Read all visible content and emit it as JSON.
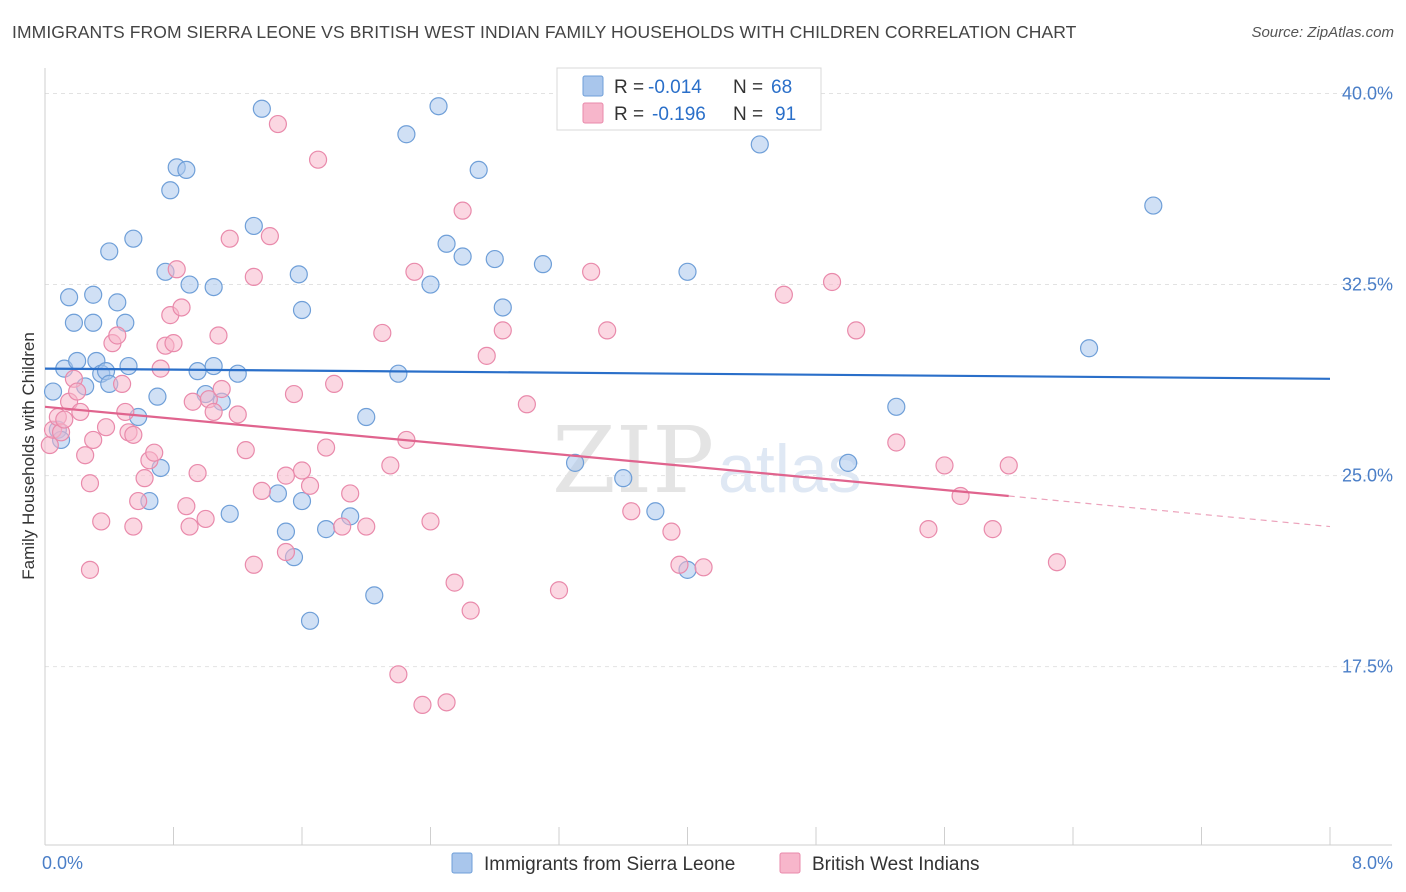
{
  "header": {
    "title": "IMMIGRANTS FROM SIERRA LEONE VS BRITISH WEST INDIAN FAMILY HOUSEHOLDS WITH CHILDREN CORRELATION CHART",
    "source": "Source: ZipAtlas.com"
  },
  "watermark": {
    "zip": "ZIP",
    "atlas": "atlas"
  },
  "legend": {
    "r_label": "R =",
    "n_label": "N =",
    "rows": [
      {
        "r": "-0.014",
        "n": "68",
        "color": "#a9c6ec"
      },
      {
        "r": "-0.196",
        "n": "91",
        "color": "#f7b6cb"
      }
    ]
  },
  "chart_data": {
    "type": "scatter",
    "title": "IMMIGRANTS FROM SIERRA LEONE VS BRITISH WEST INDIAN FAMILY HOUSEHOLDS WITH CHILDREN CORRELATION CHART",
    "xlabel": "",
    "ylabel": "Family Households with Children",
    "xlim": [
      0,
      8
    ],
    "ylim": [
      10.5,
      41
    ],
    "x_tick_labels": [
      {
        "value": 0,
        "label": "0.0%"
      },
      {
        "value": 8,
        "label": "8.0%"
      }
    ],
    "y_ticks": [
      {
        "value": 17.5,
        "label": "17.5%"
      },
      {
        "value": 25,
        "label": "25.0%"
      },
      {
        "value": 32.5,
        "label": "32.5%"
      },
      {
        "value": 40,
        "label": "40.0%"
      }
    ],
    "grid": "horizontal dashed",
    "legend_position": "top-center",
    "series": [
      {
        "name": "Immigrants from Sierra Leone",
        "color": "#a9c6ec",
        "stroke": "#6f9fd8",
        "trend": {
          "x": [
            0,
            8
          ],
          "y": [
            29.2,
            28.8
          ],
          "color": "#2a6fc9"
        },
        "points": [
          [
            0.05,
            28.3
          ],
          [
            0.08,
            26.8
          ],
          [
            0.1,
            26.4
          ],
          [
            0.12,
            29.2
          ],
          [
            0.15,
            32.0
          ],
          [
            0.18,
            31.0
          ],
          [
            0.2,
            29.5
          ],
          [
            0.25,
            28.5
          ],
          [
            0.3,
            32.1
          ],
          [
            0.3,
            31.0
          ],
          [
            0.32,
            29.5
          ],
          [
            0.35,
            29.0
          ],
          [
            0.38,
            29.1
          ],
          [
            0.4,
            28.6
          ],
          [
            0.4,
            33.8
          ],
          [
            0.45,
            31.8
          ],
          [
            0.5,
            31.0
          ],
          [
            0.52,
            29.3
          ],
          [
            0.55,
            34.3
          ],
          [
            0.58,
            27.3
          ],
          [
            0.7,
            28.1
          ],
          [
            0.72,
            25.3
          ],
          [
            0.75,
            33.0
          ],
          [
            0.78,
            36.2
          ],
          [
            0.82,
            37.1
          ],
          [
            0.88,
            37.0
          ],
          [
            0.9,
            32.5
          ],
          [
            0.95,
            29.1
          ],
          [
            1.0,
            28.2
          ],
          [
            1.05,
            32.4
          ],
          [
            1.05,
            29.3
          ],
          [
            1.1,
            27.9
          ],
          [
            1.2,
            29.0
          ],
          [
            1.3,
            34.8
          ],
          [
            1.35,
            39.4
          ],
          [
            1.45,
            24.3
          ],
          [
            1.5,
            22.8
          ],
          [
            1.55,
            21.8
          ],
          [
            1.58,
            32.9
          ],
          [
            1.6,
            31.5
          ],
          [
            1.65,
            19.3
          ],
          [
            1.75,
            22.9
          ],
          [
            1.9,
            23.4
          ],
          [
            2.0,
            27.3
          ],
          [
            2.05,
            20.3
          ],
          [
            2.2,
            29.0
          ],
          [
            2.25,
            38.4
          ],
          [
            2.4,
            32.5
          ],
          [
            2.45,
            39.5
          ],
          [
            2.5,
            34.1
          ],
          [
            2.6,
            33.6
          ],
          [
            2.7,
            37.0
          ],
          [
            2.8,
            33.5
          ],
          [
            2.85,
            31.6
          ],
          [
            3.1,
            33.3
          ],
          [
            3.3,
            25.5
          ],
          [
            3.6,
            24.9
          ],
          [
            3.8,
            23.6
          ],
          [
            4.0,
            21.3
          ],
          [
            4.0,
            33.0
          ],
          [
            4.45,
            38.0
          ],
          [
            5.0,
            25.5
          ],
          [
            5.3,
            27.7
          ],
          [
            6.5,
            30.0
          ],
          [
            6.9,
            35.6
          ],
          [
            0.65,
            24.0
          ],
          [
            1.15,
            23.5
          ],
          [
            1.6,
            24.0
          ]
        ]
      },
      {
        "name": "British West Indians",
        "color": "#f7b6cb",
        "stroke": "#e98aab",
        "trend": {
          "x": [
            0,
            6
          ],
          "y": [
            27.7,
            24.2
          ],
          "color": "#e0648e"
        },
        "trend_dashed": {
          "x": [
            6,
            8
          ],
          "y": [
            24.2,
            23.0
          ]
        },
        "points": [
          [
            0.03,
            26.2
          ],
          [
            0.05,
            26.8
          ],
          [
            0.08,
            27.3
          ],
          [
            0.1,
            26.7
          ],
          [
            0.12,
            27.2
          ],
          [
            0.15,
            27.9
          ],
          [
            0.18,
            28.8
          ],
          [
            0.2,
            28.3
          ],
          [
            0.22,
            27.5
          ],
          [
            0.25,
            25.8
          ],
          [
            0.28,
            24.7
          ],
          [
            0.3,
            26.4
          ],
          [
            0.35,
            23.2
          ],
          [
            0.38,
            26.9
          ],
          [
            0.42,
            30.2
          ],
          [
            0.45,
            30.5
          ],
          [
            0.48,
            28.6
          ],
          [
            0.5,
            27.5
          ],
          [
            0.52,
            26.7
          ],
          [
            0.55,
            26.6
          ],
          [
            0.58,
            24.0
          ],
          [
            0.62,
            24.9
          ],
          [
            0.65,
            25.6
          ],
          [
            0.68,
            25.9
          ],
          [
            0.72,
            29.2
          ],
          [
            0.75,
            30.1
          ],
          [
            0.78,
            31.3
          ],
          [
            0.8,
            30.2
          ],
          [
            0.82,
            33.1
          ],
          [
            0.85,
            31.6
          ],
          [
            0.88,
            23.8
          ],
          [
            0.9,
            23.0
          ],
          [
            0.92,
            27.9
          ],
          [
            0.95,
            25.1
          ],
          [
            1.0,
            23.3
          ],
          [
            1.02,
            28.0
          ],
          [
            1.05,
            27.5
          ],
          [
            1.08,
            30.5
          ],
          [
            1.1,
            28.4
          ],
          [
            1.15,
            34.3
          ],
          [
            1.2,
            27.4
          ],
          [
            1.25,
            26.0
          ],
          [
            1.3,
            32.8
          ],
          [
            1.35,
            24.4
          ],
          [
            1.4,
            34.4
          ],
          [
            1.45,
            38.8
          ],
          [
            1.5,
            25.0
          ],
          [
            1.55,
            28.2
          ],
          [
            1.6,
            25.2
          ],
          [
            1.65,
            24.6
          ],
          [
            1.7,
            37.4
          ],
          [
            1.75,
            26.1
          ],
          [
            1.8,
            28.6
          ],
          [
            1.85,
            23.0
          ],
          [
            1.9,
            24.3
          ],
          [
            2.0,
            23.0
          ],
          [
            2.1,
            30.6
          ],
          [
            2.15,
            25.4
          ],
          [
            2.2,
            17.2
          ],
          [
            2.25,
            26.4
          ],
          [
            2.3,
            33.0
          ],
          [
            2.35,
            16.0
          ],
          [
            2.4,
            23.2
          ],
          [
            2.5,
            16.1
          ],
          [
            2.55,
            20.8
          ],
          [
            2.6,
            35.4
          ],
          [
            2.65,
            19.7
          ],
          [
            2.75,
            29.7
          ],
          [
            2.85,
            30.7
          ],
          [
            3.0,
            27.8
          ],
          [
            3.2,
            20.5
          ],
          [
            3.4,
            33.0
          ],
          [
            3.5,
            30.7
          ],
          [
            3.65,
            23.6
          ],
          [
            3.9,
            22.8
          ],
          [
            3.95,
            21.5
          ],
          [
            4.1,
            21.4
          ],
          [
            4.6,
            32.1
          ],
          [
            4.9,
            32.6
          ],
          [
            5.05,
            30.7
          ],
          [
            5.3,
            26.3
          ],
          [
            5.5,
            22.9
          ],
          [
            5.6,
            25.4
          ],
          [
            5.7,
            24.2
          ],
          [
            5.9,
            22.9
          ],
          [
            6.0,
            25.4
          ],
          [
            6.3,
            21.6
          ],
          [
            0.28,
            21.3
          ],
          [
            0.55,
            23.0
          ],
          [
            1.3,
            21.5
          ],
          [
            1.5,
            22.0
          ]
        ]
      }
    ]
  }
}
